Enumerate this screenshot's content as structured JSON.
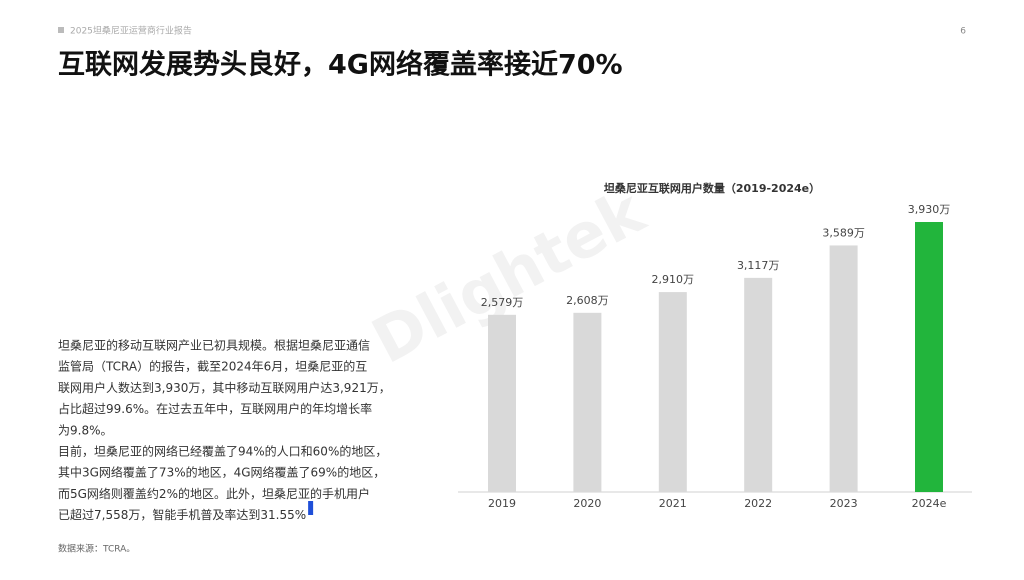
{
  "header": {
    "report": "2025坦桑尼亚运营商行业报告",
    "page": "6",
    "title": "互联网发展势头良好，4G网络覆盖率接近70%"
  },
  "body": {
    "lines": [
      "坦桑尼亚的移动互联网产业已初具规模。根据坦桑尼亚通信",
      "监管局（TCRA）的报告，截至2024年6月，坦桑尼亚的互",
      "联网用户人数达到3,930万，其中移动互联网用户达3,921万，",
      "占比超过99.6%。在过去五年中，互联网用户的年均增长率",
      "为9.8%。",
      "目前，坦桑尼亚的网络已经覆盖了94%的人口和60%的地区，",
      "其中3G网络覆盖了73%的地区，4G网络覆盖了69%的地区，",
      "而5G网络则覆盖约2%的地区。此外，坦桑尼亚的手机用户",
      "已超过7,558万，智能手机普及率达到31.55%"
    ]
  },
  "source": "数据来源：TCRA。",
  "watermark": "Dlightek",
  "chart_data": {
    "type": "bar",
    "title": "坦桑尼亚互联网用户数量（2019-2024e）",
    "categories": [
      "2019",
      "2020",
      "2021",
      "2022",
      "2023",
      "2024e"
    ],
    "values": [
      2579,
      2608,
      2910,
      3117,
      3589,
      3930
    ],
    "value_labels": [
      "2,579万",
      "2,608万",
      "2,910万",
      "3,117万",
      "3,589万",
      "3,930万"
    ],
    "colors": [
      "#d9d9d9",
      "#d9d9d9",
      "#d9d9d9",
      "#d9d9d9",
      "#d9d9d9",
      "#22b53c"
    ]
  }
}
